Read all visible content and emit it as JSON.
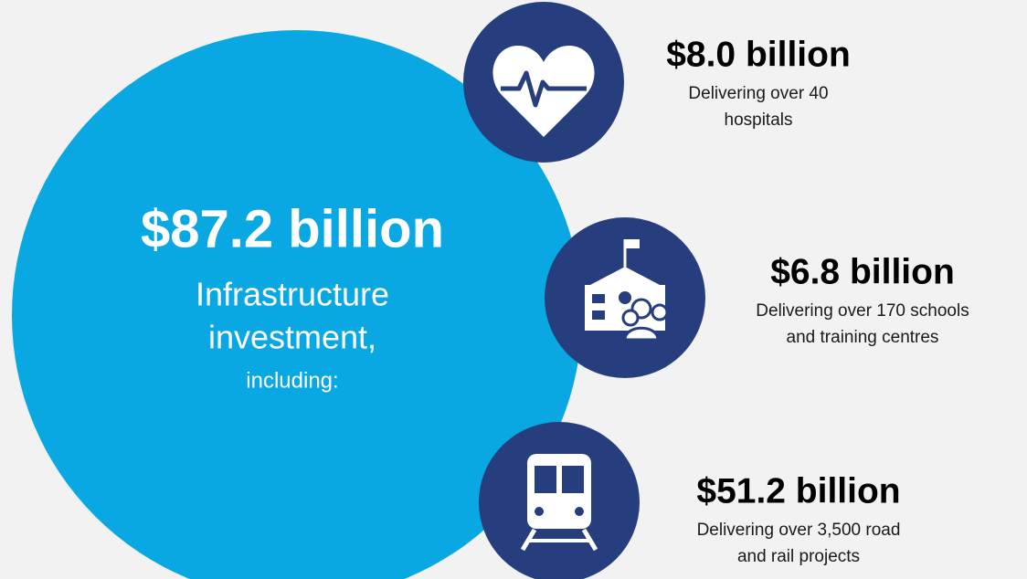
{
  "main": {
    "amount": "$87.2 billion",
    "label_lines": [
      "Infrastructure",
      "investment,"
    ],
    "note": "including:"
  },
  "items": [
    {
      "amount": "$8.0 billion",
      "description_lines": [
        "Delivering over 40",
        "hospitals"
      ]
    },
    {
      "amount": "$6.8 billion",
      "description_lines": [
        "Delivering over 170 schools",
        "and training centres"
      ]
    },
    {
      "amount": "$51.2 billion",
      "description_lines": [
        "Delivering over 3,500 road",
        "and rail projects"
      ]
    }
  ]
}
